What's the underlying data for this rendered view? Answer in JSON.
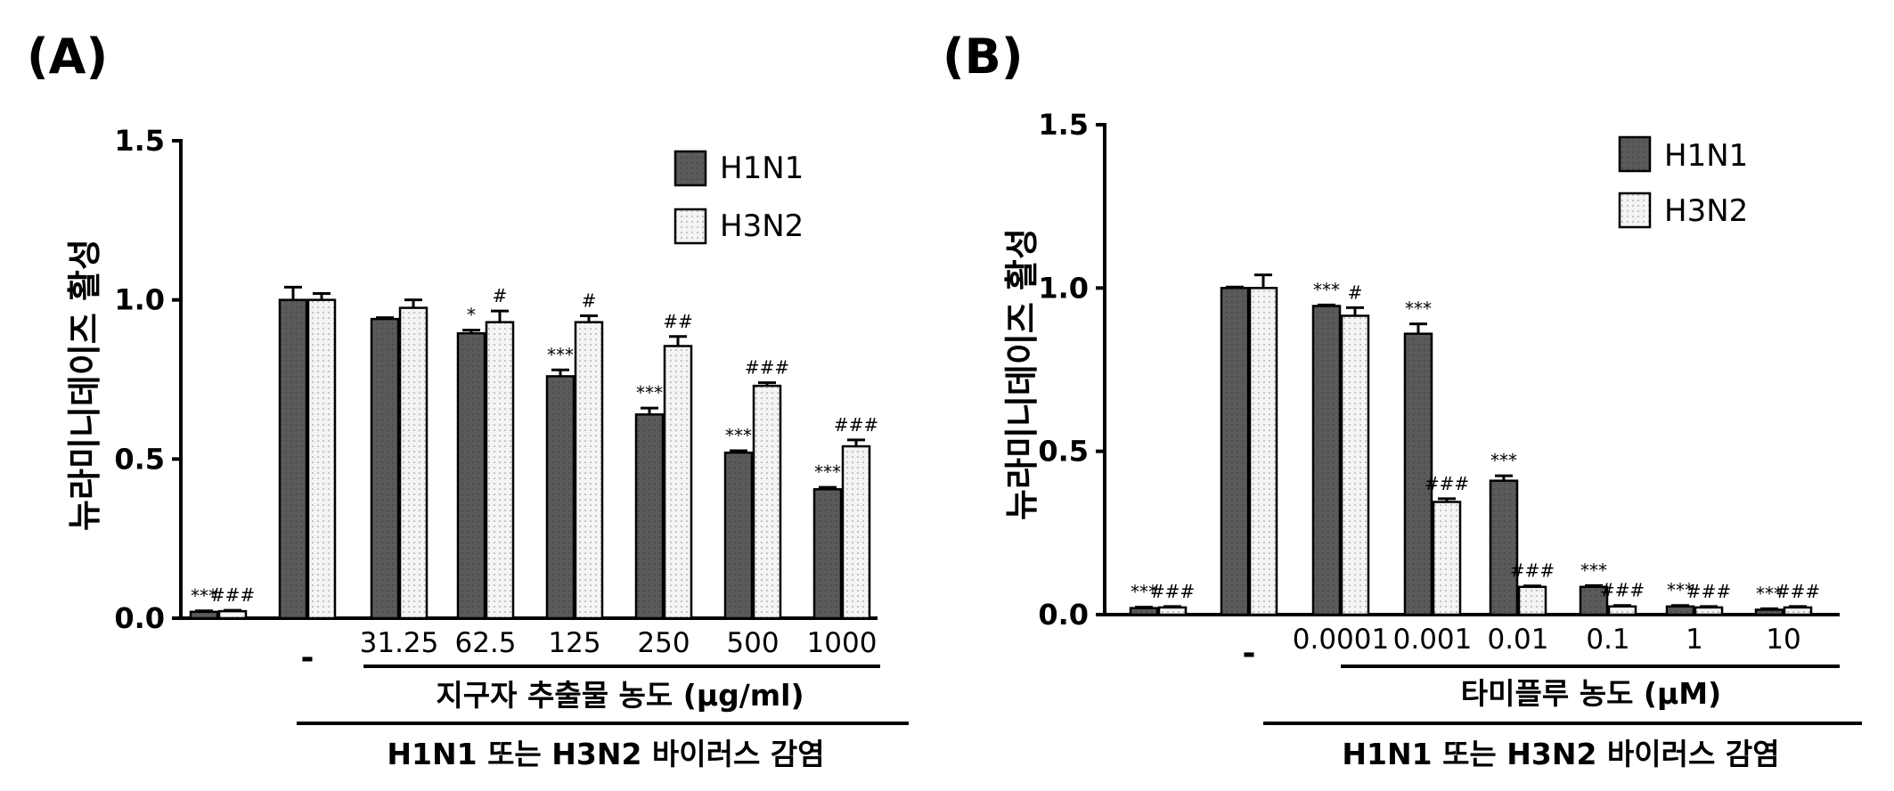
{
  "colors": {
    "h1n1": "#5a5a5a",
    "h3n2": "#f2f2f2",
    "axis": "#000000"
  },
  "chart_data": [
    {
      "type": "bar",
      "panel_label": "(A)",
      "ylabel": "뉴라미니데이즈 활성",
      "ylim": [
        0,
        1.5
      ],
      "yticks": [
        "0.0",
        "0.5",
        "1.0",
        "1.5"
      ],
      "categories": [
        "",
        "-",
        "31.25",
        "62.5",
        "125",
        "250",
        "500",
        "1000"
      ],
      "series": [
        {
          "name": "H1N1",
          "values": [
            0.02,
            1.0,
            0.94,
            0.895,
            0.76,
            0.64,
            0.52,
            0.405
          ],
          "errors": [
            0.003,
            0.04,
            0.004,
            0.01,
            0.02,
            0.02,
            0.006,
            0.006
          ],
          "sig": [
            "***",
            "",
            "",
            "*",
            "***",
            "***",
            "***",
            "***"
          ]
        },
        {
          "name": "H3N2",
          "values": [
            0.022,
            1.0,
            0.975,
            0.93,
            0.93,
            0.855,
            0.73,
            0.54
          ],
          "errors": [
            0.003,
            0.02,
            0.025,
            0.035,
            0.02,
            0.03,
            0.01,
            0.02
          ],
          "sig": [
            "###",
            "",
            "",
            "#",
            "#",
            "##",
            "###",
            "###"
          ]
        }
      ],
      "legend": [
        "H1N1",
        "H3N2"
      ],
      "legend_position": "top-right",
      "xlabel_treatment": "지구자 추출물 농도 (μg/ml)",
      "xlabel_infection": "H1N1 또는 H3N2 바이러스 감염"
    },
    {
      "type": "bar",
      "panel_label": "(B)",
      "ylabel": "뉴라미니데이즈 활성",
      "ylim": [
        0,
        1.5
      ],
      "yticks": [
        "0.0",
        "0.5",
        "1.0",
        "1.5"
      ],
      "categories": [
        "",
        "-",
        "0.0001",
        "0.001",
        "0.01",
        "0.1",
        "1",
        "10"
      ],
      "series": [
        {
          "name": "H1N1",
          "values": [
            0.02,
            1.0,
            0.945,
            0.86,
            0.41,
            0.085,
            0.025,
            0.015
          ],
          "errors": [
            0.003,
            0.003,
            0.003,
            0.03,
            0.015,
            0.004,
            0.003,
            0.003
          ],
          "sig": [
            "***",
            "",
            "***",
            "***",
            "***",
            "***",
            "***",
            "***"
          ]
        },
        {
          "name": "H3N2",
          "values": [
            0.022,
            1.0,
            0.915,
            0.345,
            0.085,
            0.025,
            0.022,
            0.022
          ],
          "errors": [
            0.003,
            0.04,
            0.025,
            0.01,
            0.003,
            0.003,
            0.003,
            0.003
          ],
          "sig": [
            "###",
            "",
            "#",
            "###",
            "###",
            "###",
            "###",
            "###"
          ]
        }
      ],
      "legend": [
        "H1N1",
        "H3N2"
      ],
      "legend_position": "top-right",
      "xlabel_treatment": "타미플루 농도 (μM)",
      "xlabel_infection": "H1N1 또는 H3N2 바이러스 감염"
    }
  ]
}
